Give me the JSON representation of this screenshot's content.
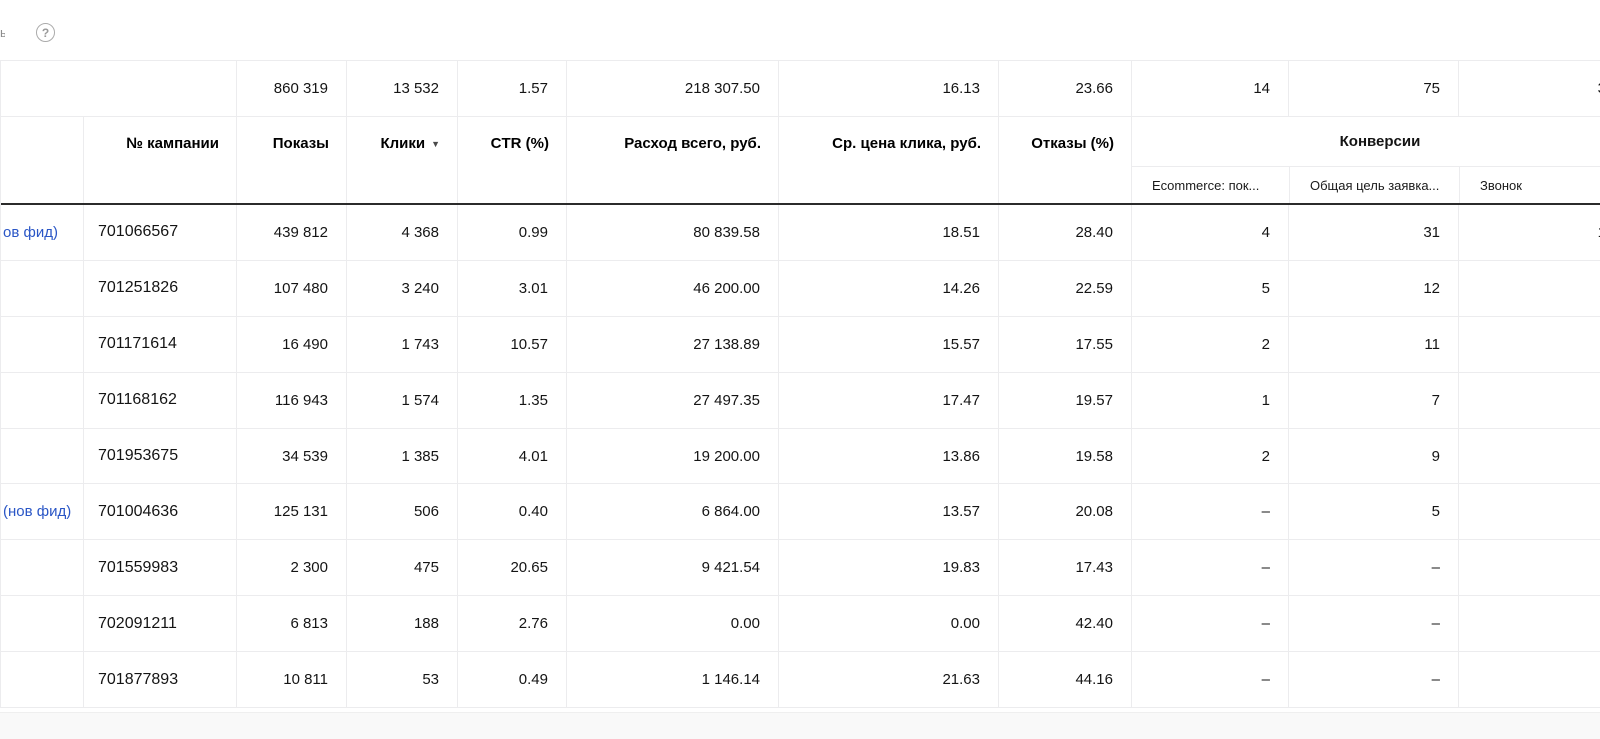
{
  "topbar": {
    "help_icon": "?",
    "clipped_fragment": "ы"
  },
  "colors": {
    "link_blue": "#2a56c6",
    "header_border": "#2b2b2b",
    "grid_line": "#ececee",
    "page_bg_strip": "#f9f9f9"
  },
  "table": {
    "headers": {
      "campaign": "№ кампании",
      "impressions": "Показы",
      "clicks": "Клики",
      "sort_arrow": "▼",
      "ctr": "CTR (%)",
      "spend": "Расход всего, руб.",
      "cpc": "Ср. цена клика, руб.",
      "bounce": "Отказы (%)",
      "conversions_group": "Конверсии",
      "sub_ecommerce": "Ecommerce: пок...",
      "sub_goal": "Общая цель заявка...",
      "sub_call": "Звонок"
    },
    "summary": {
      "impressions": "860 319",
      "clicks": "13 532",
      "ctr": "1.57",
      "spend": "218 307.50",
      "cpc": "16.13",
      "bounce": "23.66",
      "ecommerce": "14",
      "goal": "75",
      "call_partial": "3"
    },
    "rows": [
      {
        "name": "ов фид)",
        "campaign": "701066567",
        "impressions": "439 812",
        "clicks": "4 368",
        "ctr": "0.99",
        "spend": "80 839.58",
        "cpc": "18.51",
        "bounce": "28.40",
        "ecommerce": "4",
        "goal": "31",
        "call": "1"
      },
      {
        "name": "",
        "campaign": "701251826",
        "impressions": "107 480",
        "clicks": "3 240",
        "ctr": "3.01",
        "spend": "46 200.00",
        "cpc": "14.26",
        "bounce": "22.59",
        "ecommerce": "5",
        "goal": "12",
        "call": ""
      },
      {
        "name": "",
        "campaign": "701171614",
        "impressions": "16 490",
        "clicks": "1 743",
        "ctr": "10.57",
        "spend": "27 138.89",
        "cpc": "15.57",
        "bounce": "17.55",
        "ecommerce": "2",
        "goal": "11",
        "call": ""
      },
      {
        "name": "",
        "campaign": "701168162",
        "impressions": "116 943",
        "clicks": "1 574",
        "ctr": "1.35",
        "spend": "27 497.35",
        "cpc": "17.47",
        "bounce": "19.57",
        "ecommerce": "1",
        "goal": "7",
        "call": ""
      },
      {
        "name": "",
        "campaign": "701953675",
        "impressions": "34 539",
        "clicks": "1 385",
        "ctr": "4.01",
        "spend": "19 200.00",
        "cpc": "13.86",
        "bounce": "19.58",
        "ecommerce": "2",
        "goal": "9",
        "call": ""
      },
      {
        "name": "(нов фид)",
        "campaign": "701004636",
        "impressions": "125 131",
        "clicks": "506",
        "ctr": "0.40",
        "spend": "6 864.00",
        "cpc": "13.57",
        "bounce": "20.08",
        "ecommerce": "–",
        "goal": "5",
        "call": ""
      },
      {
        "name": "",
        "campaign": "701559983",
        "impressions": "2 300",
        "clicks": "475",
        "ctr": "20.65",
        "spend": "9 421.54",
        "cpc": "19.83",
        "bounce": "17.43",
        "ecommerce": "–",
        "goal": "–",
        "call": ""
      },
      {
        "name": "",
        "campaign": "702091211",
        "impressions": "6 813",
        "clicks": "188",
        "ctr": "2.76",
        "spend": "0.00",
        "cpc": "0.00",
        "bounce": "42.40",
        "ecommerce": "–",
        "goal": "–",
        "call": ""
      },
      {
        "name": "",
        "campaign": "701877893",
        "impressions": "10 811",
        "clicks": "53",
        "ctr": "0.49",
        "spend": "1 146.14",
        "cpc": "21.63",
        "bounce": "44.16",
        "ecommerce": "–",
        "goal": "–",
        "call": ""
      }
    ]
  }
}
